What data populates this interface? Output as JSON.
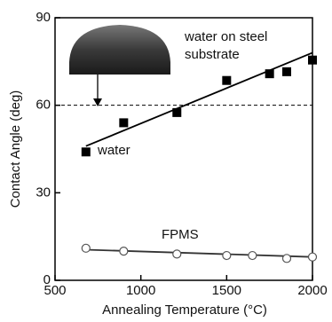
{
  "chart_data": {
    "type": "scatter",
    "xlabel": "Annealing Temperature (°C)",
    "ylabel": "Contact Angle (deg)",
    "xlim": [
      500,
      2000
    ],
    "xticks": [
      500,
      1000,
      1500,
      2000
    ],
    "ylim": [
      0,
      90
    ],
    "yticks": [
      0,
      30,
      60,
      90
    ],
    "series": [
      {
        "name": "water",
        "marker": "filled-square",
        "color": "#000000",
        "x": [
          680,
          900,
          1210,
          1500,
          1750,
          1850,
          2000
        ],
        "values": [
          44,
          54,
          57.5,
          68.5,
          70.8,
          71.5,
          75.5
        ]
      },
      {
        "name": "FPMS",
        "marker": "open-circle",
        "color": "#555555",
        "x": [
          680,
          900,
          1210,
          1500,
          1650,
          1850,
          2000
        ],
        "values": [
          11,
          10,
          9,
          8.5,
          8.5,
          7.5,
          8
        ]
      }
    ],
    "fits": [
      {
        "x": [
          680,
          2000
        ],
        "values": [
          46,
          78
        ],
        "color": "#000000"
      },
      {
        "x": [
          680,
          2000
        ],
        "values": [
          10.5,
          8
        ],
        "color": "#333333"
      }
    ],
    "reference_line": {
      "value": 60,
      "style": "dashed"
    },
    "annotation": [
      "water on steel",
      "substrate"
    ]
  }
}
